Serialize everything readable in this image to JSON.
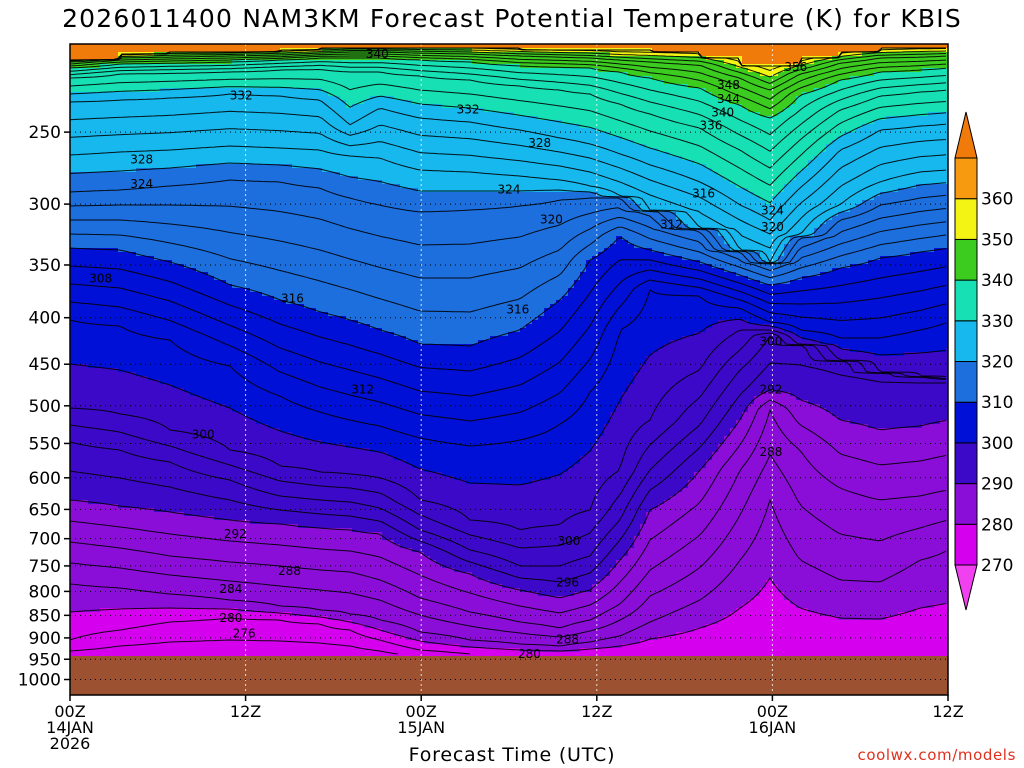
{
  "title": "2026011400 NAM3KM Forecast Potential Temperature (K) for KBIS",
  "credit": "coolwx.com/models",
  "chart_data": {
    "type": "heatmap",
    "title": "2026011400 NAM3KM Forecast Potential Temperature (K) for KBIS",
    "xlabel": "Forecast Time (UTC)",
    "ylabel": "",
    "x_ticks": [
      {
        "hour": 0,
        "lines": [
          "00Z",
          "14JAN",
          "2026"
        ]
      },
      {
        "hour": 12,
        "lines": [
          "12Z"
        ]
      },
      {
        "hour": 24,
        "lines": [
          "00Z",
          "15JAN"
        ]
      },
      {
        "hour": 36,
        "lines": [
          "12Z"
        ]
      },
      {
        "hour": 48,
        "lines": [
          "00Z",
          "16JAN"
        ]
      },
      {
        "hour": 60,
        "lines": [
          "12Z"
        ]
      }
    ],
    "xlim": [
      0,
      60
    ],
    "y_ticks": [
      250,
      300,
      350,
      400,
      450,
      500,
      550,
      600,
      650,
      700,
      750,
      800,
      850,
      900,
      950,
      1000
    ],
    "ylim_hPa": [
      200,
      1040
    ],
    "y_scale": "log-pressure (inverted)",
    "grid": true,
    "colorbar": {
      "levels": [
        270,
        280,
        290,
        300,
        310,
        320,
        330,
        340,
        350,
        360
      ],
      "colors": [
        "#d500ee",
        "#8a0ed8",
        "#3c09c8",
        "#0010d6",
        "#1d6fde",
        "#16b8ee",
        "#16e0b4",
        "#3ccc20",
        "#f4f414",
        "#f79a10"
      ],
      "under_color": "#f040f0",
      "over_color": "#f07a0a"
    },
    "contour_interval_K": 2,
    "contour_labels": [
      {
        "hour": 21.0,
        "p": 205,
        "value": 340
      },
      {
        "hour": 11.7,
        "p": 228,
        "value": 332
      },
      {
        "hour": 27.2,
        "p": 236,
        "value": 332
      },
      {
        "hour": 49.6,
        "p": 212,
        "value": 356
      },
      {
        "hour": 45.0,
        "p": 222,
        "value": 348
      },
      {
        "hour": 45.0,
        "p": 230,
        "value": 344
      },
      {
        "hour": 44.6,
        "p": 238,
        "value": 340
      },
      {
        "hour": 43.8,
        "p": 246,
        "value": 336
      },
      {
        "hour": 32.1,
        "p": 257,
        "value": 328
      },
      {
        "hour": 4.9,
        "p": 268,
        "value": 328
      },
      {
        "hour": 4.9,
        "p": 285,
        "value": 324
      },
      {
        "hour": 30.0,
        "p": 289,
        "value": 324
      },
      {
        "hour": 43.3,
        "p": 292,
        "value": 316
      },
      {
        "hour": 48.0,
        "p": 305,
        "value": 324
      },
      {
        "hour": 48.0,
        "p": 318,
        "value": 320
      },
      {
        "hour": 32.9,
        "p": 312,
        "value": 320
      },
      {
        "hour": 41.1,
        "p": 316,
        "value": 312
      },
      {
        "hour": 2.1,
        "p": 362,
        "value": 308
      },
      {
        "hour": 15.2,
        "p": 381,
        "value": 316
      },
      {
        "hour": 30.6,
        "p": 392,
        "value": 316
      },
      {
        "hour": 47.9,
        "p": 425,
        "value": 300
      },
      {
        "hour": 20.0,
        "p": 480,
        "value": 312
      },
      {
        "hour": 47.9,
        "p": 480,
        "value": 292
      },
      {
        "hour": 9.1,
        "p": 538,
        "value": 300
      },
      {
        "hour": 47.9,
        "p": 562,
        "value": 288
      },
      {
        "hour": 11.3,
        "p": 692,
        "value": 292
      },
      {
        "hour": 34.1,
        "p": 704,
        "value": 300
      },
      {
        "hour": 15.0,
        "p": 760,
        "value": 288
      },
      {
        "hour": 34.0,
        "p": 782,
        "value": 296
      },
      {
        "hour": 11.0,
        "p": 795,
        "value": 284
      },
      {
        "hour": 11.0,
        "p": 856,
        "value": 280
      },
      {
        "hour": 11.9,
        "p": 890,
        "value": 276
      },
      {
        "hour": 34.0,
        "p": 904,
        "value": 288
      },
      {
        "hour": 31.4,
        "p": 938,
        "value": 280
      }
    ]
  }
}
